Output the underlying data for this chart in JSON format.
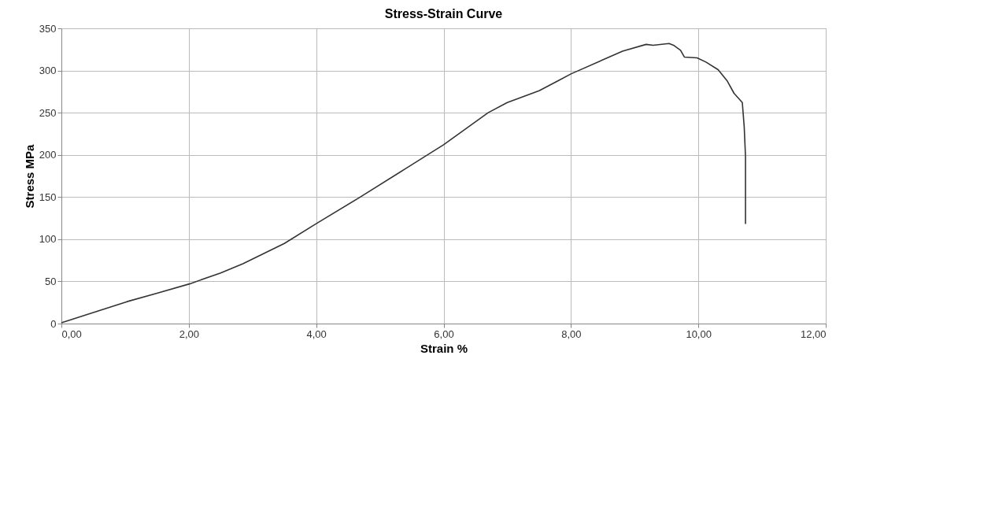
{
  "chart_data": {
    "type": "line",
    "title": "Stress-Strain Curve",
    "xlabel": "Strain %",
    "ylabel": "Stress MPa",
    "x": [
      0,
      0.5,
      1.03,
      1.5,
      2.01,
      2.5,
      2.85,
      3.5,
      3.99,
      4.67,
      5.39,
      6.0,
      6.7,
      7.0,
      7.5,
      7.8,
      8.0,
      8.81,
      9.18,
      9.29,
      9.54,
      9.61,
      9.72,
      9.78,
      9.98,
      10.12,
      10.31,
      10.45,
      10.56,
      10.69,
      10.72,
      10.74,
      10.74
    ],
    "series": [
      {
        "color": "#333333",
        "values": [
          1,
          13,
          26,
          36,
          47,
          60,
          71,
          95,
          118,
          149,
          183,
          212,
          250,
          262,
          276,
          288,
          296,
          323,
          331,
          330,
          332,
          330,
          324,
          316,
          315,
          310,
          301,
          288,
          273,
          262,
          233,
          198,
          118
        ]
      }
    ],
    "xlim": [
      0,
      12
    ],
    "xticks": [
      {
        "value": 0,
        "label": "0,00"
      },
      {
        "value": 2,
        "label": "2,00"
      },
      {
        "value": 4,
        "label": "4,00"
      },
      {
        "value": 6,
        "label": "6,00"
      },
      {
        "value": 8,
        "label": "8,00"
      },
      {
        "value": 10,
        "label": "10,00"
      },
      {
        "value": 12,
        "label": "12,00"
      }
    ],
    "ylim": [
      0,
      350
    ],
    "yticks": [
      0,
      50,
      100,
      150,
      200,
      250,
      300,
      350
    ],
    "grid": true,
    "line_style": "solid",
    "marker": "none"
  }
}
